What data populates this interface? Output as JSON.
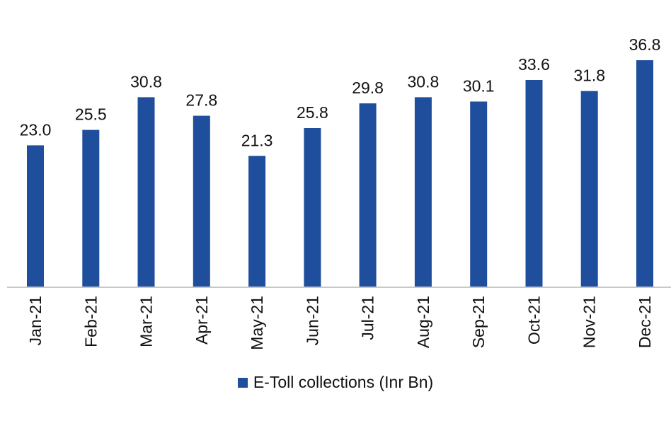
{
  "chart_data": {
    "type": "bar",
    "categories": [
      "Jan-21",
      "Feb-21",
      "Mar-21",
      "Apr-21",
      "May-21",
      "Jun-21",
      "Jul-21",
      "Aug-21",
      "Sep-21",
      "Oct-21",
      "Nov-21",
      "Dec-21"
    ],
    "series": [
      {
        "name": "E-Toll collections (Inr Bn)",
        "values": [
          23.0,
          25.5,
          30.8,
          27.8,
          21.3,
          25.8,
          29.8,
          30.8,
          30.1,
          33.6,
          31.8,
          36.8
        ],
        "color": "#1F4E9C"
      }
    ],
    "value_labels": [
      "23.0",
      "25.5",
      "30.8",
      "27.8",
      "21.3",
      "25.8",
      "29.8",
      "30.8",
      "30.1",
      "33.6",
      "31.8",
      "36.8"
    ],
    "ylim": [
      0,
      40
    ],
    "grid": false,
    "legend_position": "bottom",
    "x_tick_rotation": "vertical",
    "axis_color": "#C8C8C8"
  }
}
